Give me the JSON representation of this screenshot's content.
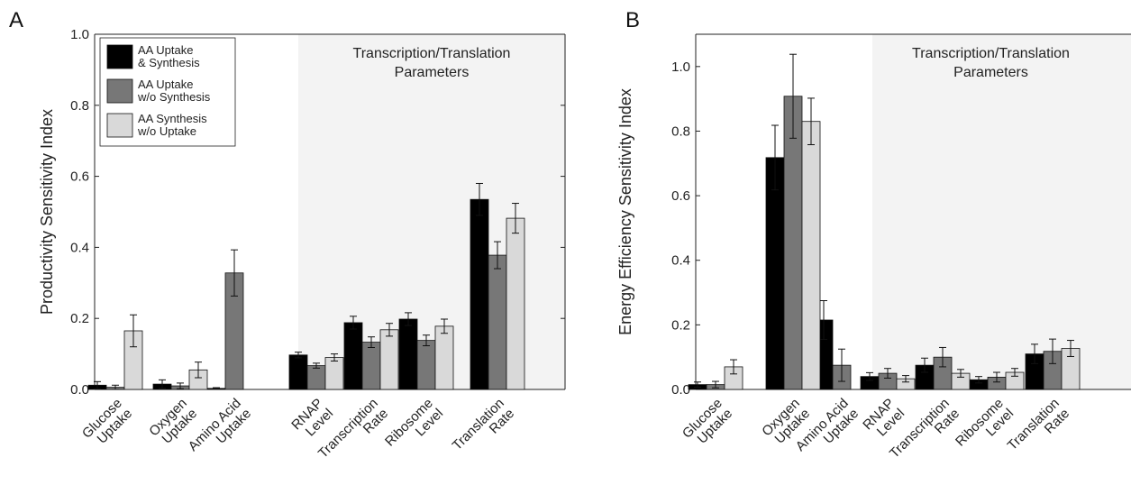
{
  "chart_data": [
    {
      "panel": "A",
      "type": "bar",
      "ylabel": "Productivity Sensitivity Index",
      "ylim": [
        0,
        1.0
      ],
      "yticks": [
        "0.0",
        "0.2",
        "0.4",
        "0.6",
        "0.8",
        "1.0"
      ],
      "categories": [
        [
          "Glucose",
          "Uptake"
        ],
        [
          "Oxygen",
          "Uptake"
        ],
        [
          "Amino Acid",
          "Uptake"
        ],
        [
          "RNAP",
          "Level"
        ],
        [
          "Transcription",
          "Rate"
        ],
        [
          "Ribosome",
          "Level"
        ],
        [
          "Translation",
          "Rate"
        ]
      ],
      "shaded_region": {
        "title_lines": [
          "Transcription/Translation",
          "Parameters"
        ],
        "from_category": 3
      },
      "legend": {
        "placement": "top-left"
      },
      "series": [
        {
          "name_lines": [
            "AA Uptake",
            "& Synthesis"
          ],
          "color": "#000000",
          "values": [
            0.012,
            0.015,
            0.003,
            0.097,
            0.188,
            0.198,
            0.535
          ],
          "errors": [
            0.01,
            0.012,
            0.002,
            0.008,
            0.018,
            0.018,
            0.045
          ]
        },
        {
          "name_lines": [
            "AA Uptake",
            "w/o Synthesis"
          ],
          "color": "#777777",
          "values": [
            0.006,
            0.01,
            0.328,
            0.067,
            0.133,
            0.138,
            0.378
          ],
          "errors": [
            0.006,
            0.008,
            0.065,
            0.007,
            0.015,
            0.015,
            0.038
          ]
        },
        {
          "name_lines": [
            "AA Synthesis",
            "w/o Uptake"
          ],
          "color": "#d9d9d9",
          "values": [
            0.165,
            0.055,
            0.0,
            0.09,
            0.168,
            0.178,
            0.482
          ],
          "errors": [
            0.045,
            0.022,
            0.0,
            0.01,
            0.018,
            0.02,
            0.042
          ]
        }
      ]
    },
    {
      "panel": "B",
      "type": "bar",
      "ylabel": "Energy Efficiency Sensitivity Index",
      "ylim": [
        0,
        1.1
      ],
      "yticks": [
        "0.0",
        "0.2",
        "0.4",
        "0.6",
        "0.8",
        "1.0"
      ],
      "categories": [
        [
          "Glucose",
          "Uptake"
        ],
        [
          "Oxygen",
          "Uptake"
        ],
        [
          "Amino Acid",
          "Uptake"
        ],
        [
          "RNAP",
          "Level"
        ],
        [
          "Transcription",
          "Rate"
        ],
        [
          "Ribosome",
          "Level"
        ],
        [
          "Translation",
          "Rate"
        ]
      ],
      "shaded_region": {
        "title_lines": [
          "Transcription/Translation",
          "Parameters"
        ],
        "from_category": 3
      },
      "series": [
        {
          "color": "#000000",
          "values": [
            0.015,
            0.718,
            0.215,
            0.04,
            0.075,
            0.03,
            0.11
          ],
          "errors": [
            0.008,
            0.1,
            0.06,
            0.012,
            0.022,
            0.01,
            0.03
          ]
        },
        {
          "color": "#777777",
          "values": [
            0.015,
            0.908,
            0.075,
            0.05,
            0.1,
            0.038,
            0.118
          ],
          "errors": [
            0.01,
            0.13,
            0.05,
            0.015,
            0.03,
            0.015,
            0.038
          ]
        },
        {
          "color": "#d9d9d9",
          "values": [
            0.07,
            0.83,
            0.0,
            0.033,
            0.05,
            0.053,
            0.127
          ],
          "errors": [
            0.022,
            0.072,
            0.0,
            0.01,
            0.012,
            0.012,
            0.025
          ]
        }
      ]
    }
  ]
}
